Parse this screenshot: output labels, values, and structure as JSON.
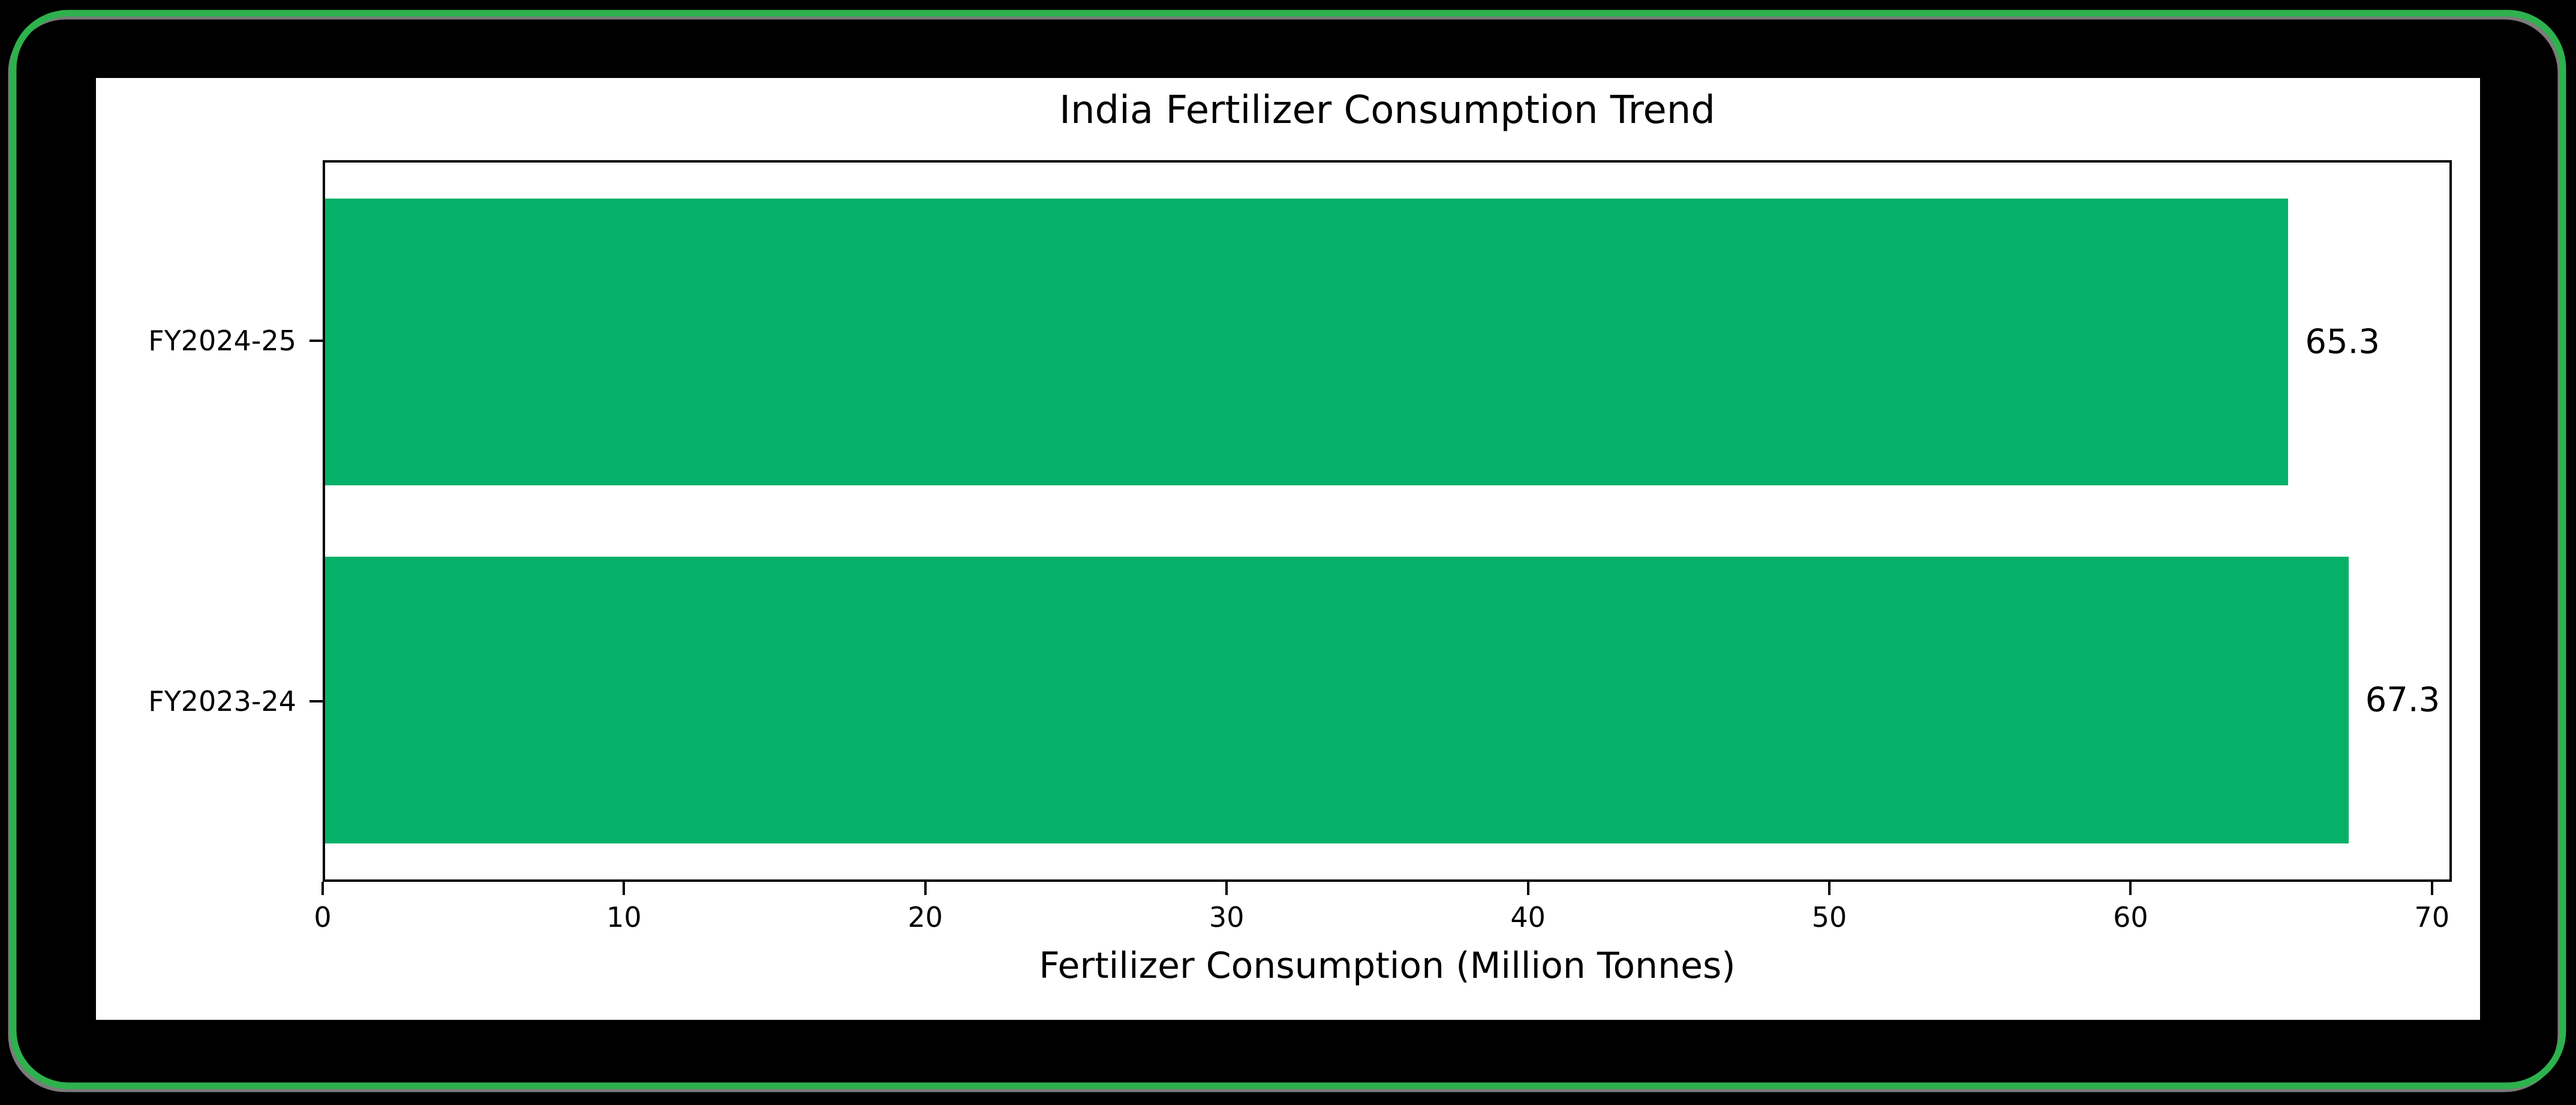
{
  "frame": {
    "outer_background": "#000000",
    "border_color": "#2db24d",
    "shadow_color": "#7b7b7b",
    "figure_background": "#ffffff"
  },
  "chart_data": {
    "type": "bar",
    "orientation": "horizontal",
    "title": "India Fertilizer Consumption Trend",
    "xlabel": "Fertilizer Consumption (Million Tonnes)",
    "ylabel": "",
    "categories": [
      "FY2024-25",
      "FY2023-24"
    ],
    "values": [
      65.3,
      67.3
    ],
    "value_labels": [
      "65.3",
      "67.3"
    ],
    "x_ticks": [
      0,
      10,
      20,
      30,
      40,
      50,
      60,
      70
    ],
    "xlim": [
      0,
      70.66
    ],
    "bar_height_fraction": 0.8,
    "bar_color": "#05b169",
    "text_color": "#000000",
    "spine_color": "#000000",
    "grid": false,
    "legend": false
  }
}
